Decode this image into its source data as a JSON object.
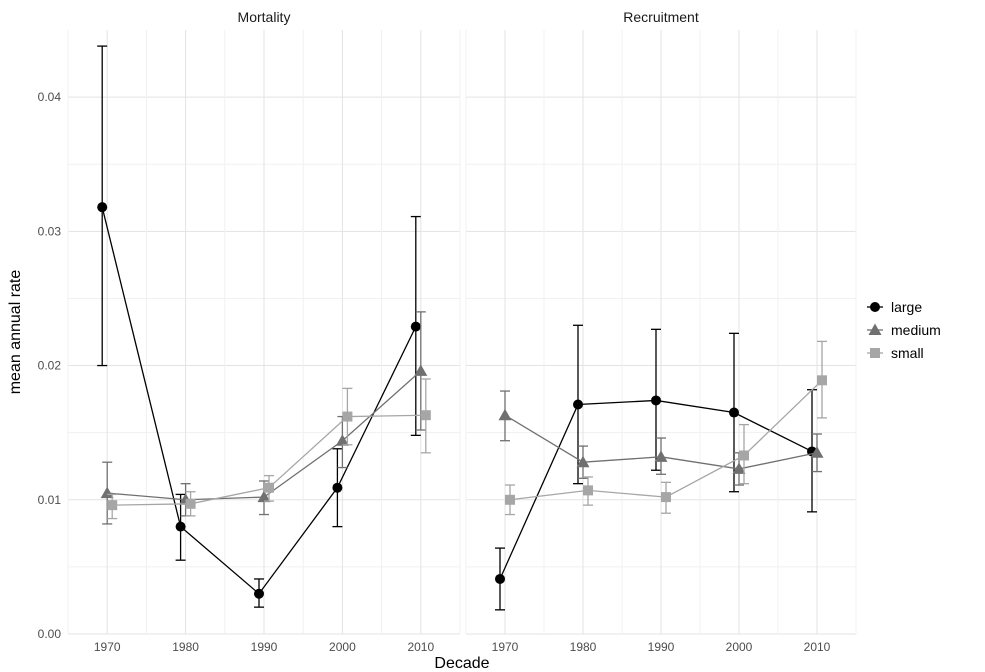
{
  "chart_data": {
    "type": "line",
    "xlabel": "Decade",
    "ylabel": "mean annual rate",
    "x_categories": [
      "1970",
      "1980",
      "1990",
      "2000",
      "2010"
    ],
    "ylim": [
      0,
      0.045
    ],
    "y_ticks": [
      "0.00",
      "0.01",
      "0.02",
      "0.03",
      "0.04"
    ],
    "y_tick_values": [
      0,
      0.01,
      0.02,
      0.03,
      0.04
    ],
    "grid": true,
    "legend_position": "right",
    "error_bars": true,
    "panels": [
      {
        "title": "Mortality",
        "series": [
          {
            "name": "large",
            "marker": "circle",
            "color": "#000000",
            "values": [
              0.0318,
              0.008,
              0.003,
              0.0109,
              0.0229
            ],
            "lower": [
              0.02,
              0.0055,
              0.002,
              0.008,
              0.0148
            ],
            "upper": [
              0.0438,
              0.0104,
              0.0041,
              0.0138,
              0.0311
            ]
          },
          {
            "name": "medium",
            "marker": "triangle",
            "color": "#707070",
            "values": [
              0.0105,
              0.01,
              0.0102,
              0.0144,
              0.0196
            ],
            "lower": [
              0.0082,
              0.0088,
              0.0089,
              0.0124,
              0.0152
            ],
            "upper": [
              0.0128,
              0.0112,
              0.0114,
              0.0162,
              0.024
            ]
          },
          {
            "name": "small",
            "marker": "square",
            "color": "#a6a6a6",
            "values": [
              0.0096,
              0.0097,
              0.0109,
              0.0162,
              0.0163
            ],
            "lower": [
              0.0086,
              0.0088,
              0.0099,
              0.0141,
              0.0135
            ],
            "upper": [
              0.0104,
              0.0106,
              0.0118,
              0.0183,
              0.019
            ]
          }
        ]
      },
      {
        "title": "Recruitment",
        "series": [
          {
            "name": "large",
            "marker": "circle",
            "color": "#000000",
            "values": [
              0.0041,
              0.0171,
              0.0174,
              0.0165,
              0.0136
            ],
            "lower": [
              0.0018,
              0.0112,
              0.0122,
              0.0106,
              0.0091
            ],
            "upper": [
              0.0064,
              0.023,
              0.0227,
              0.0224,
              0.0182
            ]
          },
          {
            "name": "medium",
            "marker": "triangle",
            "color": "#707070",
            "values": [
              0.0163,
              0.0128,
              0.0132,
              0.0123,
              0.0135
            ],
            "lower": [
              0.0144,
              0.0116,
              0.0119,
              0.0111,
              0.0121
            ],
            "upper": [
              0.0181,
              0.014,
              0.0146,
              0.0135,
              0.0149
            ]
          },
          {
            "name": "small",
            "marker": "square",
            "color": "#a6a6a6",
            "values": [
              0.01,
              0.0107,
              0.0102,
              0.0133,
              0.0189
            ],
            "lower": [
              0.0089,
              0.0096,
              0.009,
              0.0112,
              0.0161
            ],
            "upper": [
              0.0111,
              0.0117,
              0.0113,
              0.0156,
              0.0218
            ]
          }
        ]
      }
    ],
    "legend": [
      "large",
      "medium",
      "small"
    ]
  }
}
